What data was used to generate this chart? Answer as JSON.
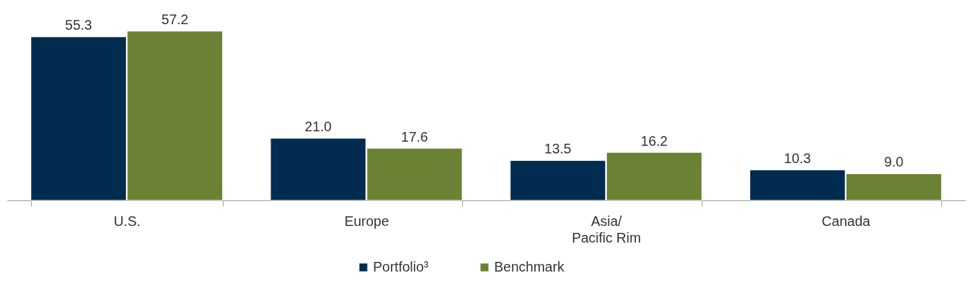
{
  "chart_data": {
    "type": "bar",
    "categories": [
      "U.S.",
      "Europe",
      "Asia/\nPacific Rim",
      "Canada"
    ],
    "series": [
      {
        "name": "Portfolio³",
        "color": "#012c4f",
        "values": [
          55.3,
          21.0,
          13.5,
          10.3
        ],
        "value_labels": [
          "55.3",
          "21.0",
          "13.5",
          "10.3"
        ]
      },
      {
        "name": "Benchmark",
        "color": "#6b8234",
        "values": [
          57.2,
          17.6,
          16.2,
          9.0
        ],
        "value_labels": [
          "57.2",
          "17.6",
          "16.2",
          "9.0"
        ]
      }
    ],
    "legend": "bottom",
    "grid": false
  }
}
